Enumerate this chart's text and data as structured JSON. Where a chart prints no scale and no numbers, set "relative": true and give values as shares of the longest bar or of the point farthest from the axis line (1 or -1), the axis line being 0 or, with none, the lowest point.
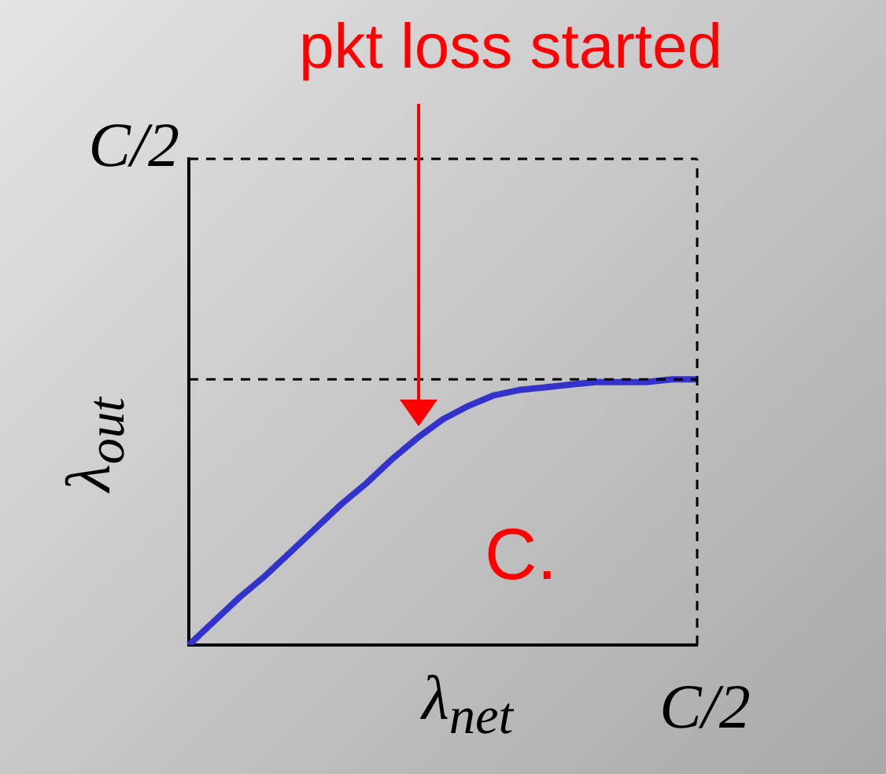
{
  "chart_data": {
    "type": "line",
    "relative": true,
    "categories": [
      null,
      null,
      null,
      null,
      null,
      null,
      null,
      null,
      null,
      null,
      null,
      null,
      null,
      null,
      null,
      null,
      null,
      null,
      null,
      null,
      null
    ],
    "series": [
      {
        "color": "#3333cc",
        "values": [
          0,
          0.09,
          0.18,
          0.26,
          0.35,
          0.44,
          0.53,
          0.61,
          0.7,
          0.78,
          0.85,
          0.9,
          0.94,
          0.96,
          0.97,
          0.98,
          0.99,
          0.99,
          0.99,
          1,
          1
        ]
      }
    ],
    "xlabel": "λ$_{net}$",
    "ylabel": "λ$_{out}$",
    "ref_lines": [
      {
        "axis": "y",
        "value": 1,
        "line_style": "dashed",
        "color": "#000000"
      },
      {
        "axis": "y",
        "value": 1.83,
        "label": "C/2",
        "line_style": "dashed",
        "color": "#000000"
      },
      {
        "axis": "x",
        "label": "C/2",
        "line_style": "dashed",
        "color": "#000000"
      }
    ],
    "annotations": [
      "pkt loss started",
      "C."
    ],
    "marker": "none",
    "line_style": "solid",
    "grid": false,
    "legend": false
  }
}
